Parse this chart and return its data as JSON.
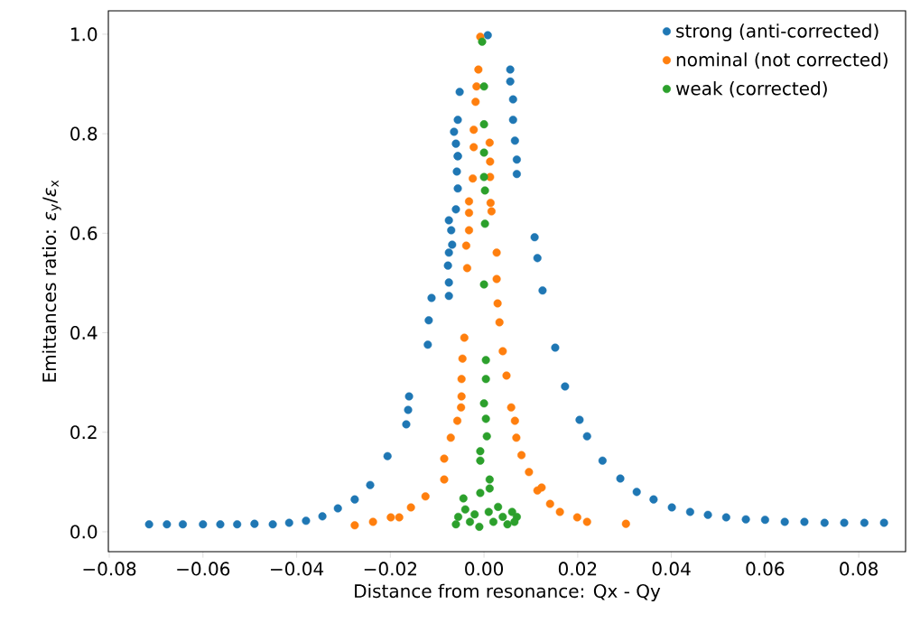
{
  "chart_data": {
    "type": "scatter",
    "xlabel": "Distance from resonance: Qx - Qy",
    "ylabel": "Emittances ratio: *ε*$_{y}$/*ε*$_{x}$",
    "xlim": [
      -0.0802,
      0.09
    ],
    "ylim": [
      -0.04,
      1.047
    ],
    "xticks": [
      {
        "value": -0.08,
        "label": "−0.08"
      },
      {
        "value": -0.06,
        "label": "−0.06"
      },
      {
        "value": -0.04,
        "label": "−0.04"
      },
      {
        "value": -0.02,
        "label": "−0.02"
      },
      {
        "value": 0,
        "label": "0.00"
      },
      {
        "value": 0.02,
        "label": "0.02"
      },
      {
        "value": 0.04,
        "label": "0.04"
      },
      {
        "value": 0.06,
        "label": "0.06"
      },
      {
        "value": 0.08,
        "label": "0.08"
      }
    ],
    "yticks": [
      {
        "value": 0,
        "label": "0.0"
      },
      {
        "value": 0.2,
        "label": "0.2"
      },
      {
        "value": 0.4,
        "label": "0.4"
      },
      {
        "value": 0.6,
        "label": "0.6"
      },
      {
        "value": 0.8,
        "label": "0.8"
      },
      {
        "value": 1.0,
        "label": "1.0"
      }
    ],
    "legend": "top right",
    "marker": "circle",
    "grid": false,
    "series": [
      {
        "name": "strong (anti-corrected)",
        "color": "#1f77b4",
        "x": [
          -0.0715,
          -0.0677,
          -0.0643,
          -0.06,
          -0.0563,
          -0.0527,
          -0.049,
          -0.0451,
          -0.0416,
          -0.038,
          -0.0345,
          -0.0312,
          -0.0276,
          -0.0243,
          -0.0206,
          -0.016,
          -0.0162,
          -0.0166,
          -0.0112,
          -0.0118,
          -0.012,
          -0.0075,
          -0.0075,
          -0.0077,
          -0.0075,
          -0.0068,
          -0.007,
          -0.0075,
          -0.006,
          -0.0056,
          -0.0058,
          -0.0056,
          -0.006,
          -0.0064,
          -0.0056,
          -0.0052,
          -0.0056,
          0.0008,
          0.0056,
          0.0056,
          0.0062,
          0.0062,
          0.0066,
          0.007,
          0.007,
          0.0108,
          0.0114,
          0.0125,
          0.0152,
          0.0173,
          0.0204,
          0.022,
          0.0253,
          0.0291,
          0.0326,
          0.0362,
          0.0401,
          0.044,
          0.0478,
          0.0517,
          0.0559,
          0.06,
          0.0642,
          0.0684,
          0.0727,
          0.0769,
          0.0812,
          0.0854
        ],
        "values": [
          0.015,
          0.015,
          0.015,
          0.015,
          0.015,
          0.015,
          0.016,
          0.015,
          0.018,
          0.022,
          0.031,
          0.047,
          0.065,
          0.094,
          0.152,
          0.272,
          0.245,
          0.216,
          0.47,
          0.425,
          0.376,
          0.474,
          0.501,
          0.535,
          0.561,
          0.577,
          0.606,
          0.626,
          0.648,
          0.69,
          0.724,
          0.755,
          0.78,
          0.804,
          0.828,
          0.884,
          0.755,
          0.998,
          0.929,
          0.905,
          0.869,
          0.828,
          0.786,
          0.748,
          0.719,
          0.592,
          0.55,
          0.485,
          0.37,
          0.292,
          0.225,
          0.192,
          0.143,
          0.107,
          0.08,
          0.065,
          0.049,
          0.04,
          0.034,
          0.029,
          0.025,
          0.024,
          0.02,
          0.02,
          0.018,
          0.018,
          0.018,
          0.018
        ]
      },
      {
        "name": "nominal (not corrected)",
        "color": "#ff7f0e",
        "x": [
          -0.0276,
          -0.0237,
          -0.0199,
          -0.0181,
          -0.0156,
          -0.0125,
          -0.0085,
          -0.0085,
          -0.0071,
          -0.0057,
          -0.0049,
          -0.0048,
          -0.0048,
          -0.0046,
          -0.0042,
          -0.0036,
          -0.0038,
          -0.0032,
          -0.0032,
          -0.0032,
          -0.0024,
          -0.0022,
          -0.0022,
          -0.0018,
          -0.0016,
          -0.0012,
          -0.0008,
          0.0012,
          0.0013,
          0.0013,
          0.0014,
          0.0016,
          0.0027,
          0.0027,
          0.0029,
          0.0033,
          0.004,
          0.0048,
          0.0058,
          0.0066,
          0.0069,
          0.008,
          0.0096,
          0.0114,
          0.0123,
          0.0141,
          0.0162,
          0.0199,
          0.022,
          0.0303
        ],
        "values": [
          0.013,
          0.02,
          0.029,
          0.029,
          0.049,
          0.071,
          0.105,
          0.147,
          0.189,
          0.223,
          0.25,
          0.272,
          0.307,
          0.348,
          0.39,
          0.53,
          0.575,
          0.606,
          0.641,
          0.664,
          0.71,
          0.773,
          0.808,
          0.864,
          0.895,
          0.929,
          0.995,
          0.782,
          0.744,
          0.713,
          0.661,
          0.644,
          0.561,
          0.508,
          0.459,
          0.421,
          0.363,
          0.314,
          0.25,
          0.223,
          0.189,
          0.154,
          0.12,
          0.083,
          0.089,
          0.056,
          0.04,
          0.029,
          0.02,
          0.016
        ]
      },
      {
        "name": "weak (corrected)",
        "color": "#2ca02c",
        "x": [
          -0.0004,
          0,
          0,
          0,
          0,
          0.0002,
          0.0002,
          0,
          0.0004,
          0.0004,
          0,
          0.0004,
          0.0006,
          -0.0008,
          -0.0008,
          0.0012,
          0.0012,
          -0.0008,
          -0.0044,
          -0.0055,
          -0.004,
          -0.003,
          -0.002,
          -0.001,
          -0.006,
          0.001,
          0.002,
          0.003,
          0.004,
          0.005,
          0.006,
          0.007,
          0.0065
        ],
        "values": [
          0.985,
          0.895,
          0.819,
          0.762,
          0.713,
          0.686,
          0.619,
          0.497,
          0.345,
          0.307,
          0.258,
          0.227,
          0.192,
          0.162,
          0.143,
          0.105,
          0.087,
          0.078,
          0.067,
          0.03,
          0.045,
          0.02,
          0.035,
          0.01,
          0.015,
          0.04,
          0.02,
          0.05,
          0.03,
          0.015,
          0.04,
          0.03,
          0.02
        ]
      }
    ]
  }
}
